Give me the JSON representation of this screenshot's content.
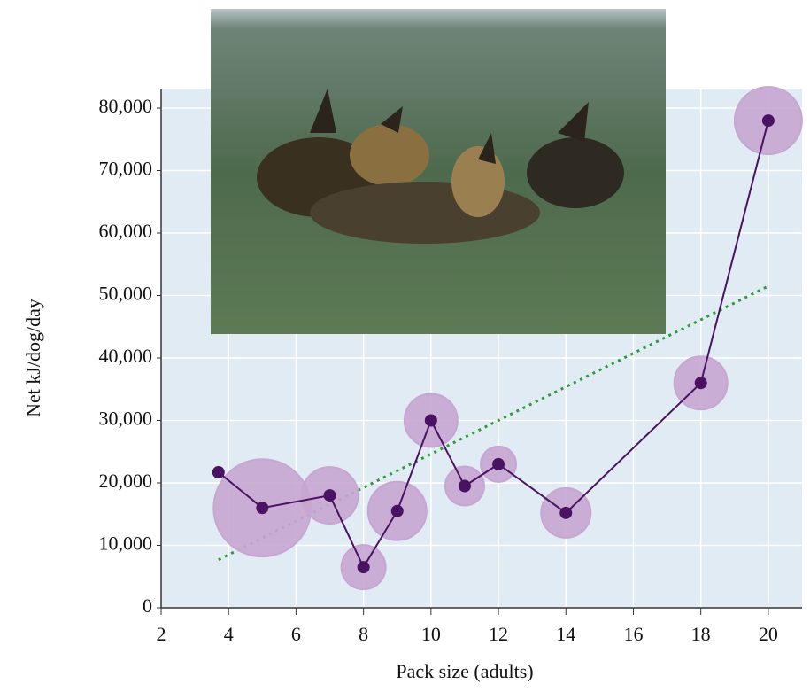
{
  "chart_data": {
    "type": "bubble",
    "x_label": "Pack size (adults)",
    "y_label": "Net kJ/dog/day",
    "series": [
      {
        "color": "#4a1262",
        "bubble_color": "#c7a6d2",
        "x": [
          3.7,
          5,
          7,
          8,
          9,
          10,
          11,
          12,
          14,
          18,
          20
        ],
        "values": [
          21700,
          16000,
          18000,
          6500,
          15500,
          30000,
          19500,
          23000,
          15200,
          36000,
          78000
        ],
        "sizes": [
          6,
          55,
          32,
          25,
          33,
          30,
          22,
          20,
          28,
          30,
          38
        ]
      }
    ],
    "trendline": {
      "color": "#2e9a3a",
      "x": [
        3.7,
        20
      ],
      "values": [
        7700,
        51500
      ]
    },
    "xlim": [
      2,
      21
    ],
    "xticks": [
      2,
      4,
      6,
      8,
      10,
      12,
      14,
      16,
      18,
      20
    ],
    "ylim": [
      0,
      80000
    ],
    "yticks": [
      0,
      {
        "value": 10000,
        "label": "10,000"
      },
      {
        "value": 20000,
        "label": "20,000"
      },
      {
        "value": 30000,
        "label": "30,000"
      },
      {
        "value": 40000,
        "label": "40,000"
      },
      {
        "value": 50000,
        "label": "50,000"
      },
      {
        "value": 60000,
        "label": "60,000"
      },
      {
        "value": 70000,
        "label": "70,000"
      },
      {
        "value": 80000,
        "label": "80,000"
      }
    ],
    "grid": true
  }
}
